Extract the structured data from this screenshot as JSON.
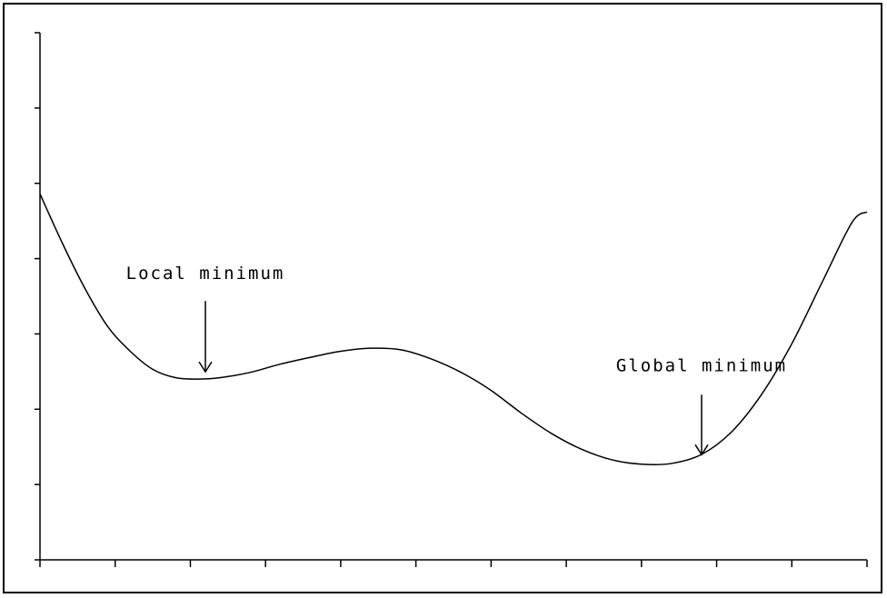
{
  "chart_data": {
    "type": "line",
    "title": "",
    "xlabel": "",
    "ylabel": "",
    "xlim": [
      0,
      11
    ],
    "ylim": [
      0,
      7
    ],
    "x_tick_count": 12,
    "y_tick_count": 8,
    "grid": false,
    "series": [
      {
        "points": [
          [
            0.0,
            4.86
          ],
          [
            0.3,
            4.2
          ],
          [
            0.6,
            3.6
          ],
          [
            0.9,
            3.1
          ],
          [
            1.2,
            2.77
          ],
          [
            1.5,
            2.53
          ],
          [
            1.8,
            2.42
          ],
          [
            2.1,
            2.4
          ],
          [
            2.4,
            2.42
          ],
          [
            2.8,
            2.49
          ],
          [
            3.2,
            2.6
          ],
          [
            3.6,
            2.69
          ],
          [
            4.0,
            2.77
          ],
          [
            4.4,
            2.81
          ],
          [
            4.8,
            2.79
          ],
          [
            5.2,
            2.67
          ],
          [
            5.6,
            2.49
          ],
          [
            6.0,
            2.25
          ],
          [
            6.4,
            1.95
          ],
          [
            6.8,
            1.68
          ],
          [
            7.2,
            1.47
          ],
          [
            7.6,
            1.33
          ],
          [
            8.0,
            1.27
          ],
          [
            8.4,
            1.28
          ],
          [
            8.8,
            1.4
          ],
          [
            9.2,
            1.7
          ],
          [
            9.6,
            2.2
          ],
          [
            10.0,
            2.87
          ],
          [
            10.4,
            3.68
          ],
          [
            10.8,
            4.48
          ],
          [
            11.0,
            4.62
          ]
        ]
      }
    ],
    "annotations": [
      {
        "id": "local",
        "text": "Local minimum",
        "x": 2.2,
        "y": 2.4
      },
      {
        "id": "global",
        "text": "Global minimum",
        "x": 8.8,
        "y": 1.3
      }
    ]
  }
}
